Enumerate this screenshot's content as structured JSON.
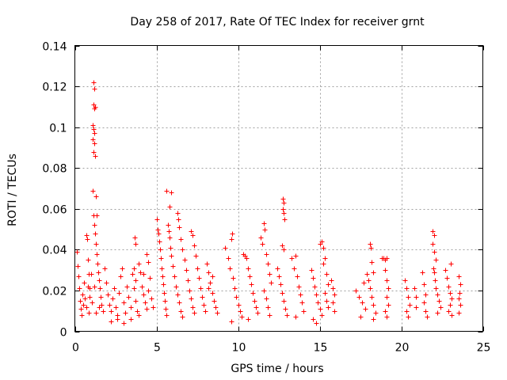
{
  "chart_data": {
    "type": "scatter",
    "title": "Day 258 of 2017, Rate Of TEC Index for receiver grnt",
    "xlabel": "GPS time / hours",
    "ylabel": "ROTI / TECUs",
    "xlim": [
      0,
      25
    ],
    "ylim": [
      0,
      0.14
    ],
    "xticks": [
      0,
      5,
      10,
      15,
      20,
      25
    ],
    "xtick_labels": [
      "0",
      "5",
      "10",
      "15",
      "20",
      "25"
    ],
    "yticks": [
      0,
      0.02,
      0.04,
      0.06,
      0.08,
      0.1,
      0.12,
      0.14
    ],
    "ytick_labels": [
      "0",
      "0.02",
      "0.04",
      "0.06",
      "0.08",
      "0.1",
      "0.12",
      "0.14"
    ],
    "grid": true,
    "marker": "+",
    "color": "#ff0000",
    "series": [
      {
        "name": "ROTI",
        "points": [
          [
            0.1,
            0.039
          ],
          [
            0.15,
            0.032
          ],
          [
            0.2,
            0.027
          ],
          [
            0.25,
            0.021
          ],
          [
            0.3,
            0.015
          ],
          [
            0.35,
            0.011
          ],
          [
            0.4,
            0.008
          ],
          [
            0.45,
            0.018
          ],
          [
            0.5,
            0.013
          ],
          [
            0.55,
            0.024
          ],
          [
            0.6,
            0.016
          ],
          [
            0.7,
            0.012
          ],
          [
            0.8,
            0.022
          ],
          [
            0.85,
            0.009
          ],
          [
            0.9,
            0.017
          ],
          [
            1.0,
            0.028
          ],
          [
            1.05,
            0.014
          ],
          [
            0.7,
            0.047
          ],
          [
            0.75,
            0.045
          ],
          [
            0.8,
            0.035
          ],
          [
            0.85,
            0.028
          ],
          [
            0.9,
            0.021
          ],
          [
            1.1,
            0.069
          ],
          [
            1.15,
            0.057
          ],
          [
            1.2,
            0.052
          ],
          [
            1.25,
            0.048
          ],
          [
            1.3,
            0.043
          ],
          [
            1.35,
            0.038
          ],
          [
            1.4,
            0.033
          ],
          [
            1.45,
            0.029
          ],
          [
            1.5,
            0.025
          ],
          [
            1.55,
            0.021
          ],
          [
            1.6,
            0.017
          ],
          [
            1.65,
            0.013
          ],
          [
            1.7,
            0.01
          ],
          [
            1.2,
            0.022
          ],
          [
            1.3,
            0.009
          ],
          [
            1.5,
            0.012
          ],
          [
            1.15,
            0.122
          ],
          [
            1.2,
            0.119
          ],
          [
            1.15,
            0.111
          ],
          [
            1.2,
            0.109
          ],
          [
            1.25,
            0.11
          ],
          [
            1.1,
            0.101
          ],
          [
            1.15,
            0.099
          ],
          [
            1.2,
            0.097
          ],
          [
            1.1,
            0.094
          ],
          [
            1.2,
            0.092
          ],
          [
            1.15,
            0.088
          ],
          [
            1.25,
            0.086
          ],
          [
            1.3,
            0.066
          ],
          [
            1.35,
            0.057
          ],
          [
            1.8,
            0.031
          ],
          [
            1.9,
            0.024
          ],
          [
            2.0,
            0.018
          ],
          [
            2.1,
            0.013
          ],
          [
            2.2,
            0.01
          ],
          [
            2.3,
            0.016
          ],
          [
            2.4,
            0.021
          ],
          [
            2.5,
            0.012
          ],
          [
            2.6,
            0.008
          ],
          [
            2.7,
            0.019
          ],
          [
            2.8,
            0.027
          ],
          [
            2.9,
            0.031
          ],
          [
            3.0,
            0.014
          ],
          [
            3.1,
            0.009
          ],
          [
            3.2,
            0.022
          ],
          [
            3.3,
            0.017
          ],
          [
            3.4,
            0.012
          ],
          [
            3.5,
            0.028
          ],
          [
            3.6,
            0.021
          ],
          [
            3.7,
            0.015
          ],
          [
            3.8,
            0.01
          ],
          [
            2.2,
            0.005
          ],
          [
            2.6,
            0.006
          ],
          [
            3.0,
            0.004
          ],
          [
            3.4,
            0.006
          ],
          [
            3.9,
            0.008
          ],
          [
            3.6,
            0.031
          ],
          [
            3.7,
            0.025
          ],
          [
            3.9,
            0.033
          ],
          [
            4.0,
            0.029
          ],
          [
            4.1,
            0.022
          ],
          [
            4.2,
            0.018
          ],
          [
            4.3,
            0.014
          ],
          [
            4.4,
            0.011
          ],
          [
            4.5,
            0.02
          ],
          [
            4.6,
            0.026
          ],
          [
            4.7,
            0.016
          ],
          [
            4.8,
            0.012
          ],
          [
            3.65,
            0.046
          ],
          [
            3.7,
            0.043
          ],
          [
            4.4,
            0.038
          ],
          [
            4.5,
            0.034
          ],
          [
            4.2,
            0.028
          ],
          [
            5.0,
            0.055
          ],
          [
            5.05,
            0.05
          ],
          [
            5.1,
            0.048
          ],
          [
            5.15,
            0.044
          ],
          [
            5.2,
            0.04
          ],
          [
            5.25,
            0.036
          ],
          [
            5.3,
            0.031
          ],
          [
            5.35,
            0.027
          ],
          [
            5.4,
            0.023
          ],
          [
            5.45,
            0.019
          ],
          [
            5.5,
            0.015
          ],
          [
            5.55,
            0.011
          ],
          [
            5.6,
            0.008
          ],
          [
            5.6,
            0.069
          ],
          [
            5.9,
            0.068
          ],
          [
            5.8,
            0.061
          ],
          [
            5.7,
            0.052
          ],
          [
            5.75,
            0.049
          ],
          [
            5.8,
            0.046
          ],
          [
            5.85,
            0.041
          ],
          [
            5.9,
            0.037
          ],
          [
            6.0,
            0.032
          ],
          [
            6.1,
            0.027
          ],
          [
            6.2,
            0.022
          ],
          [
            6.3,
            0.018
          ],
          [
            6.4,
            0.014
          ],
          [
            6.5,
            0.01
          ],
          [
            6.6,
            0.007
          ],
          [
            6.3,
            0.058
          ],
          [
            6.35,
            0.055
          ],
          [
            6.4,
            0.051
          ],
          [
            6.5,
            0.045
          ],
          [
            6.6,
            0.04
          ],
          [
            6.7,
            0.035
          ],
          [
            6.8,
            0.03
          ],
          [
            6.9,
            0.025
          ],
          [
            7.0,
            0.02
          ],
          [
            7.1,
            0.016
          ],
          [
            7.2,
            0.012
          ],
          [
            7.3,
            0.009
          ],
          [
            7.1,
            0.049
          ],
          [
            7.2,
            0.047
          ],
          [
            7.3,
            0.042
          ],
          [
            7.4,
            0.037
          ],
          [
            7.5,
            0.031
          ],
          [
            7.6,
            0.026
          ],
          [
            7.7,
            0.021
          ],
          [
            7.8,
            0.017
          ],
          [
            7.9,
            0.013
          ],
          [
            8.0,
            0.01
          ],
          [
            8.1,
            0.033
          ],
          [
            8.2,
            0.029
          ],
          [
            8.3,
            0.024
          ],
          [
            8.4,
            0.019
          ],
          [
            8.5,
            0.015
          ],
          [
            8.6,
            0.012
          ],
          [
            8.7,
            0.009
          ],
          [
            8.2,
            0.021
          ],
          [
            8.4,
            0.027
          ],
          [
            9.2,
            0.041
          ],
          [
            9.4,
            0.036
          ],
          [
            9.5,
            0.031
          ],
          [
            9.6,
            0.045
          ],
          [
            9.65,
            0.048
          ],
          [
            9.7,
            0.026
          ],
          [
            9.8,
            0.021
          ],
          [
            9.9,
            0.017
          ],
          [
            10.0,
            0.013
          ],
          [
            10.1,
            0.01
          ],
          [
            10.2,
            0.007
          ],
          [
            9.6,
            0.005
          ],
          [
            10.3,
            0.038
          ],
          [
            10.4,
            0.037
          ],
          [
            10.5,
            0.036
          ],
          [
            10.6,
            0.031
          ],
          [
            10.7,
            0.027
          ],
          [
            10.8,
            0.023
          ],
          [
            10.9,
            0.019
          ],
          [
            11.0,
            0.015
          ],
          [
            11.1,
            0.012
          ],
          [
            11.2,
            0.009
          ],
          [
            10.6,
            0.006
          ],
          [
            11.4,
            0.046
          ],
          [
            11.5,
            0.043
          ],
          [
            11.6,
            0.053
          ],
          [
            11.65,
            0.05
          ],
          [
            11.7,
            0.038
          ],
          [
            11.8,
            0.033
          ],
          [
            11.9,
            0.028
          ],
          [
            12.0,
            0.024
          ],
          [
            11.6,
            0.02
          ],
          [
            11.7,
            0.016
          ],
          [
            11.8,
            0.012
          ],
          [
            11.9,
            0.008
          ],
          [
            12.4,
            0.031
          ],
          [
            12.5,
            0.027
          ],
          [
            12.6,
            0.023
          ],
          [
            12.7,
            0.019
          ],
          [
            12.8,
            0.015
          ],
          [
            12.9,
            0.011
          ],
          [
            13.0,
            0.008
          ],
          [
            12.7,
            0.042
          ],
          [
            12.8,
            0.04
          ],
          [
            12.75,
            0.065
          ],
          [
            12.8,
            0.063
          ],
          [
            12.75,
            0.06
          ],
          [
            12.8,
            0.058
          ],
          [
            12.85,
            0.055
          ],
          [
            13.3,
            0.036
          ],
          [
            13.4,
            0.031
          ],
          [
            13.5,
            0.037
          ],
          [
            13.6,
            0.027
          ],
          [
            13.7,
            0.022
          ],
          [
            13.8,
            0.018
          ],
          [
            13.9,
            0.014
          ],
          [
            14.0,
            0.01
          ],
          [
            13.5,
            0.007
          ],
          [
            14.5,
            0.03
          ],
          [
            14.6,
            0.026
          ],
          [
            14.7,
            0.022
          ],
          [
            14.8,
            0.018
          ],
          [
            14.9,
            0.014
          ],
          [
            15.0,
            0.011
          ],
          [
            15.1,
            0.008
          ],
          [
            14.6,
            0.006
          ],
          [
            14.8,
            0.004
          ],
          [
            15.0,
            0.043
          ],
          [
            15.1,
            0.044
          ],
          [
            15.2,
            0.041
          ],
          [
            15.3,
            0.036
          ],
          [
            15.2,
            0.033
          ],
          [
            15.4,
            0.028
          ],
          [
            15.5,
            0.023
          ],
          [
            15.3,
            0.019
          ],
          [
            15.4,
            0.015
          ],
          [
            15.5,
            0.012
          ],
          [
            15.7,
            0.025
          ],
          [
            15.8,
            0.021
          ],
          [
            15.9,
            0.018
          ],
          [
            15.8,
            0.014
          ],
          [
            15.9,
            0.01
          ],
          [
            17.2,
            0.02
          ],
          [
            17.4,
            0.017
          ],
          [
            17.6,
            0.014
          ],
          [
            17.8,
            0.011
          ],
          [
            17.5,
            0.007
          ],
          [
            17.7,
            0.024
          ],
          [
            17.9,
            0.028
          ],
          [
            18.0,
            0.025
          ],
          [
            18.1,
            0.043
          ],
          [
            18.15,
            0.041
          ],
          [
            18.2,
            0.034
          ],
          [
            18.3,
            0.029
          ],
          [
            18.1,
            0.021
          ],
          [
            18.2,
            0.017
          ],
          [
            18.3,
            0.013
          ],
          [
            18.4,
            0.009
          ],
          [
            18.3,
            0.006
          ],
          [
            18.8,
            0.036
          ],
          [
            18.9,
            0.036
          ],
          [
            19.0,
            0.035
          ],
          [
            19.1,
            0.036
          ],
          [
            19.0,
            0.03
          ],
          [
            19.1,
            0.025
          ],
          [
            19.2,
            0.021
          ],
          [
            19.1,
            0.017
          ],
          [
            19.2,
            0.013
          ],
          [
            19.0,
            0.01
          ],
          [
            19.1,
            0.007
          ],
          [
            20.2,
            0.025
          ],
          [
            20.3,
            0.021
          ],
          [
            20.4,
            0.017
          ],
          [
            20.5,
            0.013
          ],
          [
            20.3,
            0.01
          ],
          [
            20.4,
            0.007
          ],
          [
            20.8,
            0.021
          ],
          [
            20.9,
            0.017
          ],
          [
            20.9,
            0.012
          ],
          [
            21.3,
            0.029
          ],
          [
            21.4,
            0.023
          ],
          [
            21.5,
            0.018
          ],
          [
            21.4,
            0.014
          ],
          [
            21.5,
            0.01
          ],
          [
            21.6,
            0.007
          ],
          [
            21.9,
            0.049
          ],
          [
            22.0,
            0.047
          ],
          [
            21.9,
            0.043
          ],
          [
            22.0,
            0.039
          ],
          [
            22.1,
            0.035
          ],
          [
            21.95,
            0.031
          ],
          [
            22.0,
            0.029
          ],
          [
            22.05,
            0.025
          ],
          [
            22.1,
            0.021
          ],
          [
            22.2,
            0.018
          ],
          [
            22.3,
            0.015
          ],
          [
            22.4,
            0.012
          ],
          [
            22.2,
            0.009
          ],
          [
            22.7,
            0.03
          ],
          [
            22.8,
            0.026
          ],
          [
            22.9,
            0.022
          ],
          [
            23.0,
            0.019
          ],
          [
            23.1,
            0.016
          ],
          [
            23.0,
            0.013
          ],
          [
            22.9,
            0.01
          ],
          [
            23.1,
            0.008
          ],
          [
            23.05,
            0.033
          ],
          [
            23.5,
            0.027
          ],
          [
            23.6,
            0.023
          ],
          [
            23.55,
            0.019
          ],
          [
            23.5,
            0.016
          ],
          [
            23.6,
            0.013
          ],
          [
            23.5,
            0.009
          ]
        ]
      }
    ]
  }
}
